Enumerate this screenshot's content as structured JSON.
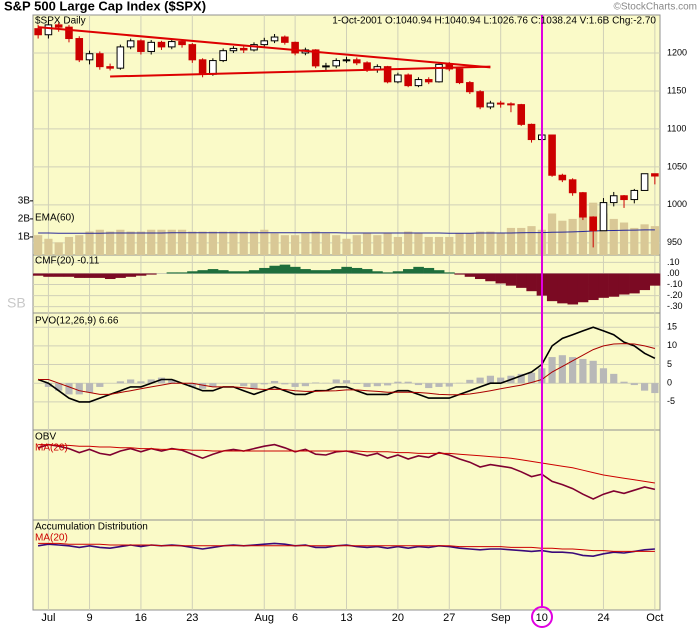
{
  "chart_data": [
    {
      "type": "candlestick",
      "title": "S&P 500 Large Cap Index ($SPX)",
      "subtitle": "$SPX Daily",
      "quote": "1-Oct-2001 O:1040.94 H:1040.94 L:1026.76 C:1038.24 V:1.6B Chg:-2.70",
      "credit": "©StockCharts.com",
      "watermark": "SB",
      "categories": [
        null,
        "Jul",
        null,
        null,
        null,
        "9",
        null,
        null,
        null,
        null,
        "16",
        null,
        null,
        null,
        null,
        "23",
        null,
        null,
        null,
        null,
        null,
        null,
        "Aug",
        null,
        null,
        "6",
        null,
        null,
        null,
        null,
        "13",
        null,
        null,
        null,
        null,
        "20",
        null,
        null,
        null,
        null,
        "27",
        null,
        null,
        null,
        null,
        "Sep",
        null,
        null,
        null,
        "10",
        null,
        null,
        null,
        null,
        null,
        "24",
        null,
        null,
        null,
        null,
        "Oct"
      ],
      "open": [
        1232,
        1224,
        1237,
        1234,
        1219,
        1191,
        1199,
        1182,
        1180,
        1208,
        1216,
        1202,
        1214,
        1208,
        1215,
        1211,
        1191,
        1172,
        1190,
        1203,
        1206,
        1204,
        1211,
        1216,
        1221,
        1214,
        1200,
        1204,
        1183,
        1183,
        1190,
        1191,
        1187,
        1178,
        1182,
        1162,
        1171,
        1157,
        1165,
        1162,
        1185,
        1179,
        1161,
        1149,
        1129,
        1134,
        1133,
        1132,
        1106,
        1086,
        1092,
        1039,
        1033,
        1016,
        984,
        966,
        1003,
        1012,
        1007,
        1019,
        1041
      ],
      "high": [
        1237,
        1242,
        1240,
        1237,
        1222,
        1203,
        1202,
        1186,
        1211,
        1219,
        1218,
        1217,
        1216,
        1218,
        1218,
        1213,
        1193,
        1193,
        1206,
        1209,
        1209,
        1214,
        1220,
        1225,
        1223,
        1215,
        1207,
        1205,
        1187,
        1193,
        1195,
        1194,
        1189,
        1185,
        1183,
        1174,
        1173,
        1168,
        1168,
        1187,
        1188,
        1180,
        1163,
        1151,
        1137,
        1137,
        1135,
        1133,
        1107,
        1097,
        1092,
        1041,
        1035,
        1017,
        985,
        1009,
        1017,
        1013,
        1021,
        1041,
        1041
      ],
      "low": [
        1219,
        1219,
        1228,
        1214,
        1188,
        1185,
        1178,
        1177,
        1178,
        1205,
        1198,
        1198,
        1204,
        1205,
        1207,
        1187,
        1168,
        1170,
        1188,
        1200,
        1200,
        1202,
        1208,
        1213,
        1211,
        1197,
        1197,
        1180,
        1176,
        1180,
        1187,
        1184,
        1175,
        1174,
        1160,
        1160,
        1155,
        1155,
        1159,
        1161,
        1176,
        1159,
        1146,
        1126,
        1126,
        1128,
        1122,
        1104,
        1082,
        1080,
        1037,
        1030,
        1012,
        980,
        944,
        966,
        998,
        996,
        1002,
        1019,
        1027
      ],
      "close": [
        1224,
        1237,
        1234,
        1219,
        1191,
        1199,
        1182,
        1180,
        1208,
        1216,
        1202,
        1214,
        1208,
        1215,
        1211,
        1191,
        1172,
        1190,
        1203,
        1206,
        1204,
        1211,
        1216,
        1221,
        1214,
        1200,
        1204,
        1183,
        1183,
        1190,
        1191,
        1187,
        1178,
        1182,
        1162,
        1171,
        1157,
        1165,
        1162,
        1185,
        1179,
        1161,
        1149,
        1129,
        1134,
        1133,
        1132,
        1106,
        1086,
        1092,
        1039,
        1033,
        1016,
        984,
        966,
        1003,
        1012,
        1007,
        1019,
        1041,
        1038
      ],
      "up_color": "#000000",
      "down_color": "#cc0000",
      "ylim": [
        934,
        1250
      ],
      "yticks": [
        950,
        1000,
        1050,
        1100,
        1150,
        1200
      ],
      "volume": {
        "color": "#d9c896",
        "values": [
          1.1,
          0.9,
          0.7,
          1.0,
          1.1,
          1.3,
          1.4,
          1.3,
          1.4,
          1.3,
          1.3,
          1.4,
          1.4,
          1.4,
          1.4,
          1.3,
          1.3,
          1.3,
          1.3,
          1.3,
          1.3,
          1.3,
          1.4,
          1.2,
          1.1,
          1.1,
          1.2,
          1.3,
          1.2,
          1.1,
          0.9,
          1.1,
          1.2,
          1.1,
          1.2,
          1.0,
          1.3,
          1.2,
          1.0,
          1.0,
          1.0,
          1.2,
          1.2,
          1.3,
          1.3,
          1.2,
          1.5,
          1.5,
          1.6,
          1.4,
          2.3,
          1.9,
          2.0,
          2.3,
          2.9,
          2.3,
          2.0,
          1.8,
          1.5,
          1.7,
          1.6
        ],
        "ema": {
          "name": "EMA(60)",
          "color": "#2a2a9a",
          "values": [
            1.22,
            1.22,
            1.21,
            1.21,
            1.21,
            1.21,
            1.21,
            1.22,
            1.22,
            1.22,
            1.22,
            1.22,
            1.22,
            1.23,
            1.23,
            1.23,
            1.23,
            1.23,
            1.23,
            1.23,
            1.23,
            1.23,
            1.23,
            1.23,
            1.23,
            1.23,
            1.23,
            1.23,
            1.23,
            1.23,
            1.22,
            1.22,
            1.22,
            1.22,
            1.22,
            1.22,
            1.22,
            1.22,
            1.22,
            1.22,
            1.21,
            1.21,
            1.21,
            1.22,
            1.22,
            1.22,
            1.22,
            1.23,
            1.24,
            1.24,
            1.26,
            1.27,
            1.28,
            1.3,
            1.33,
            1.35,
            1.36,
            1.37,
            1.38,
            1.39,
            1.39
          ]
        }
      },
      "y2lim": [
        0,
        13.3
      ],
      "y2ticks": [
        {
          "value": 1,
          "label": "1B"
        },
        {
          "value": 2,
          "label": "2B"
        },
        {
          "value": 3,
          "label": "3B"
        }
      ],
      "trendlines": [
        {
          "color": "#dd0000",
          "x": [
            0,
            44
          ],
          "y": [
            1234,
            1181
          ]
        },
        {
          "color": "#dd0000",
          "x": [
            7,
            44
          ],
          "y": [
            1169,
            1182
          ]
        }
      ],
      "grid": true
    },
    {
      "type": "area",
      "title": "CMF(20) -0.11",
      "values": [
        -0.02,
        -0.03,
        -0.03,
        -0.03,
        -0.04,
        -0.04,
        -0.04,
        -0.05,
        -0.04,
        -0.03,
        -0.02,
        -0.01,
        0.0,
        0.01,
        0.01,
        0.02,
        0.03,
        0.04,
        0.03,
        0.02,
        0.02,
        0.03,
        0.05,
        0.07,
        0.08,
        0.06,
        0.04,
        0.03,
        0.03,
        0.04,
        0.06,
        0.05,
        0.04,
        0.02,
        0.01,
        0.02,
        0.04,
        0.06,
        0.05,
        0.03,
        0.01,
        -0.01,
        -0.03,
        -0.05,
        -0.07,
        -0.09,
        -0.11,
        -0.13,
        -0.16,
        -0.2,
        -0.25,
        -0.27,
        -0.28,
        -0.26,
        -0.24,
        -0.22,
        -0.21,
        -0.19,
        -0.18,
        -0.15,
        -0.11
      ],
      "positive_color": "#1e6e3c",
      "negative_color": "#7b0a23",
      "ylim": [
        -0.33,
        0.14
      ],
      "yticks": [
        {
          "value": 0.1,
          "label": ".10"
        },
        {
          "value": 0,
          "label": ".00"
        },
        {
          "value": -0.1,
          "label": "-.10"
        },
        {
          "value": -0.2,
          "label": "-.20"
        },
        {
          "value": -0.3,
          "label": "-.30"
        }
      ],
      "grid": true
    },
    {
      "type": "line",
      "title": "PVO(12,26,9) 6.66",
      "series": [
        {
          "color": "#000000",
          "values": [
            1,
            0,
            -2,
            -4,
            -5,
            -5,
            -4,
            -3,
            -2,
            -1,
            -1,
            0,
            1,
            1,
            0,
            -1,
            -2,
            -2,
            -1,
            -1,
            -2,
            -3,
            -2,
            -1,
            -2,
            -3,
            -3,
            -2,
            -2,
            -1,
            -1,
            -2,
            -3,
            -3,
            -3,
            -2,
            -2,
            -3,
            -4,
            -4,
            -4,
            -3,
            -2,
            -1,
            0,
            0,
            1,
            2,
            3,
            5,
            10,
            12,
            13,
            14,
            15,
            14,
            13,
            11,
            10,
            8,
            6.66
          ]
        },
        {
          "color": "#aa0000",
          "values": [
            1,
            1,
            0,
            -1,
            -2,
            -2.5,
            -3,
            -3,
            -2.5,
            -2,
            -1.5,
            -1,
            -0.5,
            0,
            0,
            0,
            -0.5,
            -1,
            -1,
            -1,
            -1.2,
            -1.5,
            -1.7,
            -1.6,
            -1.7,
            -2,
            -2.2,
            -2.2,
            -2.1,
            -2,
            -1.8,
            -1.8,
            -2,
            -2.2,
            -2.4,
            -2.4,
            -2.4,
            -2.5,
            -2.7,
            -3,
            -3.1,
            -3.1,
            -2.9,
            -2.5,
            -2,
            -1.5,
            -1,
            -0.5,
            0.2,
            1,
            3,
            4.5,
            6,
            7.5,
            9,
            10,
            10.5,
            10.6,
            10.5,
            10,
            9.3
          ]
        }
      ],
      "histogram": {
        "color": "#b8b8b8",
        "values": [
          0,
          -1,
          -2,
          -3,
          -3,
          -2.5,
          -1,
          0,
          0.5,
          1,
          0.5,
          1,
          1.5,
          1,
          0,
          -1,
          -1.5,
          -1,
          0,
          0,
          -0.8,
          -1.5,
          -0.3,
          0.6,
          -0.3,
          -1,
          -0.8,
          0.2,
          0.1,
          1,
          0.8,
          -0.2,
          -1,
          -0.8,
          -0.6,
          0.4,
          0.4,
          -0.5,
          -1.3,
          -1,
          -0.9,
          0.1,
          0.9,
          1.5,
          2,
          1.5,
          2,
          2.5,
          2.8,
          4,
          7,
          7.5,
          7,
          6.5,
          6,
          4,
          2.5,
          0.4,
          -0.5,
          -2,
          -2.64
        ]
      },
      "ylim": [
        -12,
        18
      ],
      "yticks": [
        -5,
        0,
        5,
        10,
        15
      ],
      "grid": true
    },
    {
      "type": "line",
      "series": [
        {
          "name": "OBV",
          "color": "#800030",
          "values": [
            84,
            88,
            86,
            83,
            78,
            82,
            77,
            75,
            80,
            83,
            79,
            83,
            80,
            83,
            81,
            76,
            71,
            76,
            80,
            82,
            80,
            83,
            86,
            88,
            84,
            79,
            82,
            76,
            75,
            79,
            80,
            77,
            74,
            77,
            71,
            75,
            70,
            74,
            72,
            78,
            75,
            70,
            66,
            60,
            63,
            61,
            59,
            54,
            48,
            51,
            42,
            38,
            33,
            26,
            20,
            26,
            30,
            27,
            31,
            35,
            32
          ]
        },
        {
          "name": "MA(20)",
          "color": "#cc0000",
          "values": [
            88,
            88,
            87,
            87,
            86,
            86,
            85,
            85,
            84,
            84,
            83,
            83,
            82,
            82,
            82,
            81,
            81,
            80,
            80,
            80,
            80,
            80,
            80,
            80,
            80,
            80,
            80,
            80,
            80,
            80,
            80,
            80,
            79,
            79,
            79,
            78,
            78,
            77,
            77,
            77,
            77,
            76,
            75,
            74,
            73,
            72,
            71,
            69,
            67,
            65,
            63,
            61,
            59,
            56,
            53,
            50,
            48,
            46,
            44,
            42,
            40
          ]
        }
      ],
      "ylim": [
        0,
        100
      ]
    },
    {
      "type": "line",
      "series": [
        {
          "name": "Accumulation Distribution",
          "color": "#3a0a7a",
          "values": [
            74,
            76,
            75,
            74,
            72,
            74,
            72,
            71,
            73,
            75,
            73,
            75,
            74,
            75,
            74,
            72,
            70,
            72,
            74,
            75,
            74,
            75,
            76,
            77,
            76,
            74,
            75,
            72,
            72,
            74,
            75,
            73,
            72,
            73,
            71,
            73,
            71,
            73,
            72,
            74,
            73,
            71,
            70,
            69,
            70,
            70,
            69,
            68,
            67,
            68,
            66,
            66,
            65,
            62,
            61,
            64,
            66,
            65,
            67,
            69,
            70
          ]
        },
        {
          "name": "MA(20)",
          "color": "#cc0000",
          "values": [
            77,
            77,
            77,
            76,
            76,
            76,
            76,
            75,
            75,
            75,
            75,
            75,
            74,
            74,
            74,
            74,
            74,
            74,
            74,
            74,
            74,
            74,
            74,
            74,
            74,
            74,
            74,
            74,
            74,
            74,
            74,
            74,
            74,
            74,
            74,
            74,
            74,
            74,
            74,
            74,
            74,
            73,
            73,
            73,
            73,
            73,
            72,
            72,
            72,
            71,
            71,
            70,
            70,
            69,
            68,
            68,
            67,
            67,
            67,
            67,
            67
          ]
        }
      ],
      "ylim": [
        0,
        100
      ]
    }
  ]
}
